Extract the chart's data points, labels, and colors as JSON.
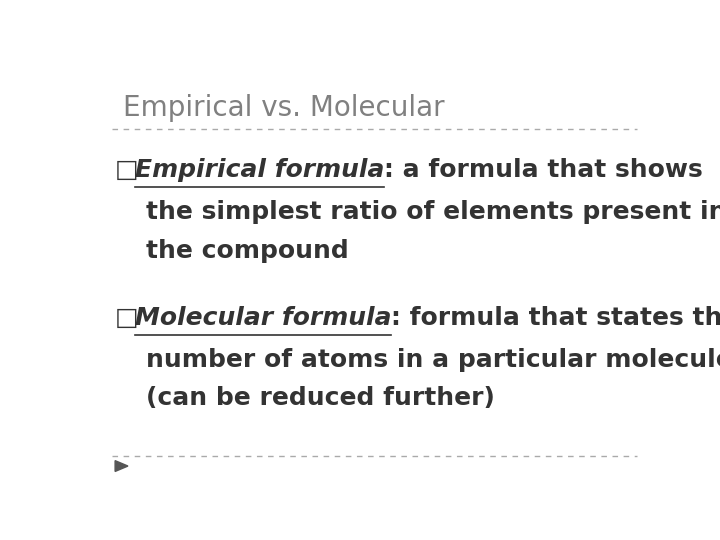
{
  "title": "Empirical vs. Molecular",
  "title_color": "#808080",
  "title_fontsize": 20,
  "background_color": "#ffffff",
  "line_color": "#aaaaaa",
  "bullet1_bold_italic": "Empirical formula",
  "bullet1_colon_rest": ": a formula that shows",
  "bullet1_line2": "the simplest ratio of elements present in",
  "bullet1_line3": "the compound",
  "bullet2_bold_italic": "Molecular formula",
  "bullet2_colon_rest": ": formula that states the",
  "bullet2_line2": "number of atoms in a particular molecule",
  "bullet2_line3": "(can be reduced further)",
  "triangle_color": "#555555",
  "text_color": "#333333",
  "body_fontsize": 18
}
